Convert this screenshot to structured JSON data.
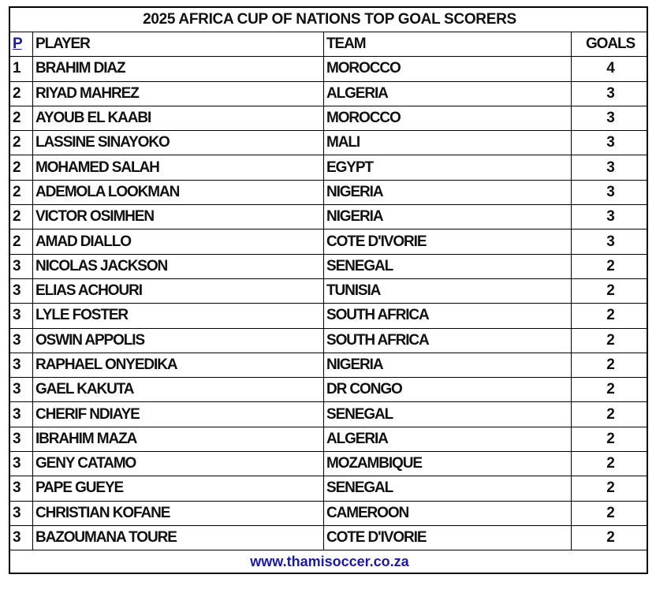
{
  "title": "2025 AFRICA CUP OF NATIONS TOP GOAL SCORERS",
  "headers": {
    "pos": "P",
    "player": "PLAYER",
    "team": "TEAM",
    "goals": "GOALS"
  },
  "rows": [
    {
      "pos": "1",
      "player": "BRAHIM DIAZ",
      "team": "MOROCCO",
      "goals": "4"
    },
    {
      "pos": "2",
      "player": "RIYAD MAHREZ",
      "team": "ALGERIA",
      "goals": "3"
    },
    {
      "pos": "2",
      "player": "AYOUB EL KAABI",
      "team": "MOROCCO",
      "goals": "3"
    },
    {
      "pos": "2",
      "player": "LASSINE SINAYOKO",
      "team": "MALI",
      "goals": "3"
    },
    {
      "pos": "2",
      "player": "MOHAMED SALAH",
      "team": "EGYPT",
      "goals": "3"
    },
    {
      "pos": "2",
      "player": "ADEMOLA LOOKMAN",
      "team": "NIGERIA",
      "goals": "3"
    },
    {
      "pos": "2",
      "player": "VICTOR OSIMHEN",
      "team": "NIGERIA",
      "goals": "3"
    },
    {
      "pos": "2",
      "player": "AMAD DIALLO",
      "team": "COTE D'IVORIE",
      "goals": "3"
    },
    {
      "pos": "3",
      "player": "NICOLAS JACKSON",
      "team": "SENEGAL",
      "goals": "2"
    },
    {
      "pos": "3",
      "player": "ELIAS ACHOURI",
      "team": "TUNISIA",
      "goals": "2"
    },
    {
      "pos": "3",
      "player": "LYLE FOSTER",
      "team": "SOUTH AFRICA",
      "goals": "2"
    },
    {
      "pos": "3",
      "player": "OSWIN APPOLIS",
      "team": "SOUTH AFRICA",
      "goals": "2"
    },
    {
      "pos": "3",
      "player": "RAPHAEL ONYEDIKA",
      "team": "NIGERIA",
      "goals": "2"
    },
    {
      "pos": "3",
      "player": "GAEL KAKUTA",
      "team": "DR CONGO",
      "goals": "2"
    },
    {
      "pos": "3",
      "player": "CHERIF NDIAYE",
      "team": "SENEGAL",
      "goals": "2"
    },
    {
      "pos": "3",
      "player": "IBRAHIM MAZA",
      "team": "ALGERIA",
      "goals": "2"
    },
    {
      "pos": "3",
      "player": "GENY CATAMO",
      "team": "MOZAMBIQUE",
      "goals": "2"
    },
    {
      "pos": "3",
      "player": "PAPE GUEYE",
      "team": "SENEGAL",
      "goals": "2"
    },
    {
      "pos": "3",
      "player": "CHRISTIAN KOFANE",
      "team": "CAMEROON",
      "goals": "2"
    },
    {
      "pos": "3",
      "player": "BAZOUMANA TOURE",
      "team": "COTE D'IVORIE",
      "goals": "2"
    }
  ],
  "footer": "www.thamisoccer.co.za",
  "colors": {
    "link": "#1a1aaa",
    "border": "#000000"
  }
}
